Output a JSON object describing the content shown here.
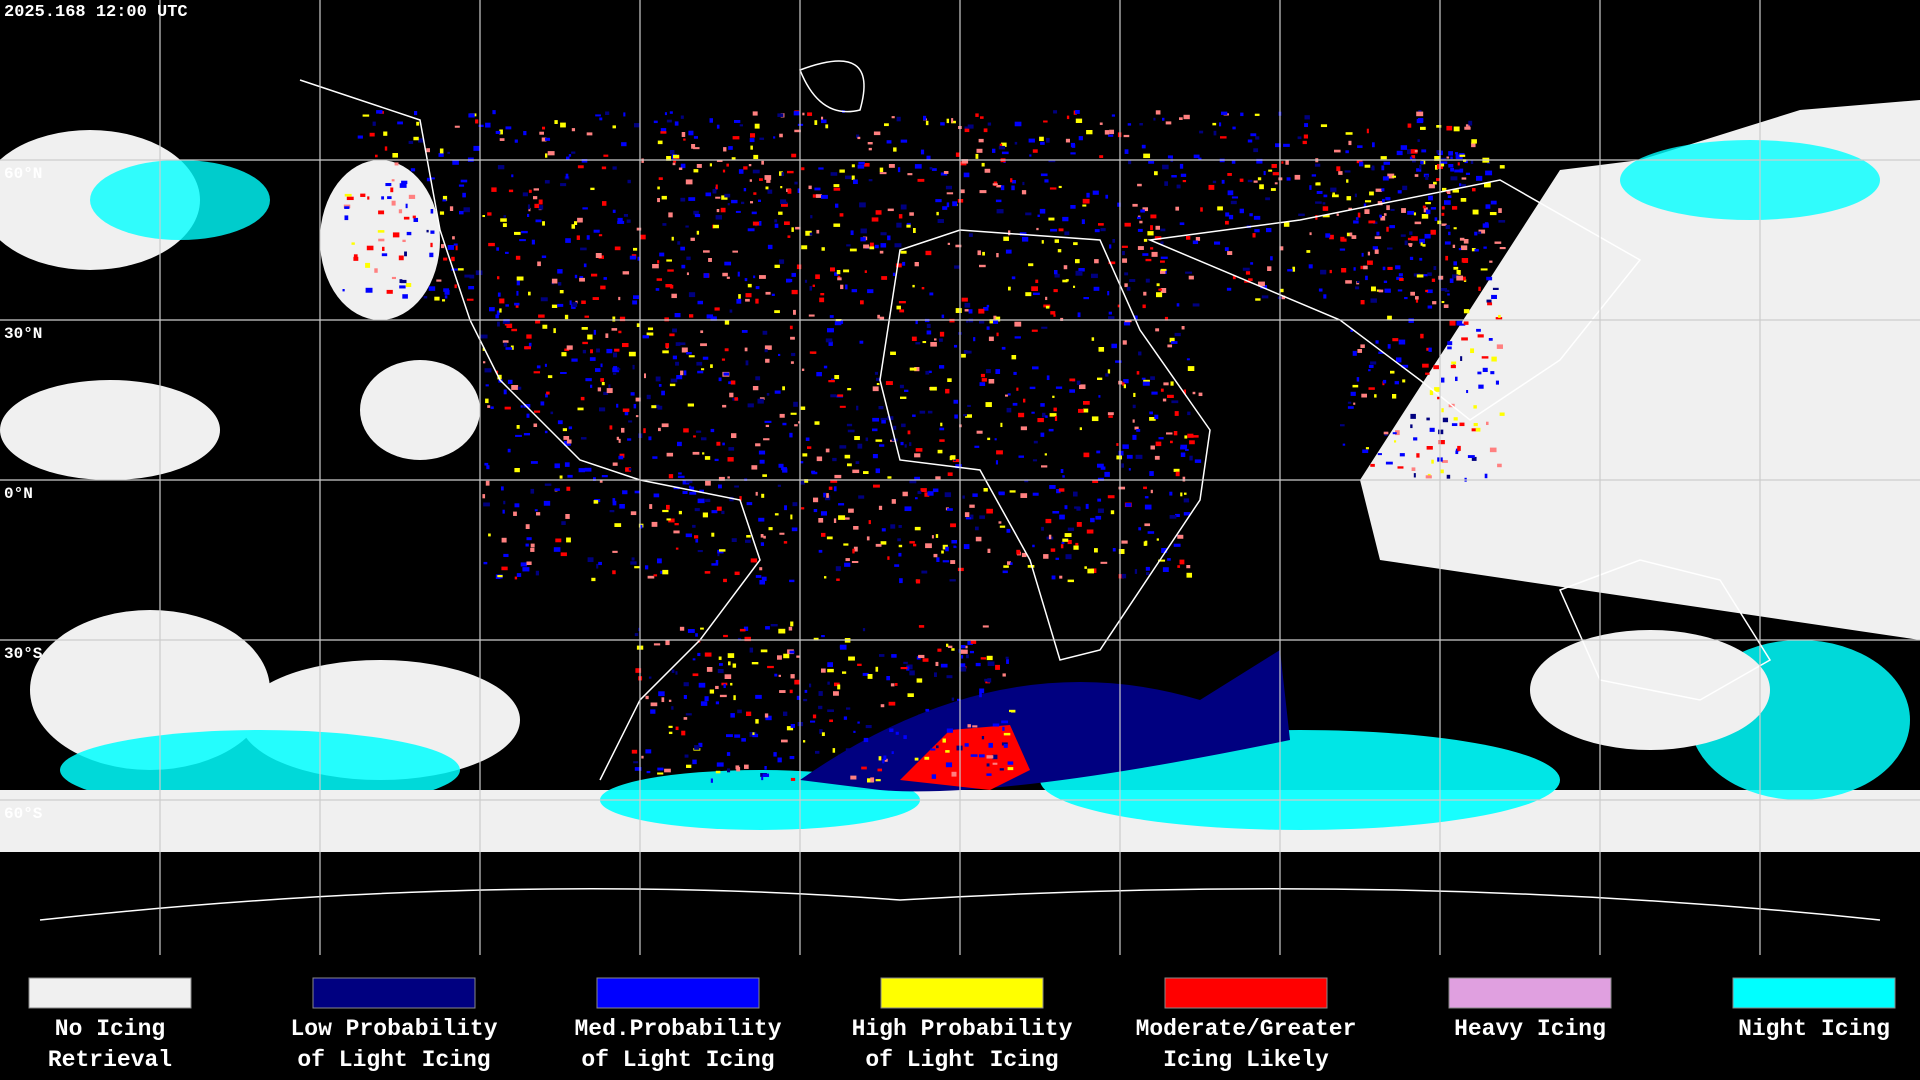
{
  "header": {
    "timestamp": "2025.168 12:00 UTC"
  },
  "map": {
    "lat_labels": [
      "60°N",
      "30°N",
      "0°N",
      "30°S",
      "60°S"
    ]
  },
  "legend": {
    "items": [
      {
        "lines": [
          "No Icing",
          "Retrieval"
        ],
        "color": "#f0f0f0"
      },
      {
        "lines": [
          "Low Probability",
          "of Light Icing"
        ],
        "color": "#000080"
      },
      {
        "lines": [
          "Med.Probability",
          "of Light Icing"
        ],
        "color": "#0000ff"
      },
      {
        "lines": [
          "High Probability",
          "of Light Icing"
        ],
        "color": "#ffff00"
      },
      {
        "lines": [
          "Moderate/Greater",
          "Icing Likely"
        ],
        "color": "#ff0000"
      },
      {
        "lines": [
          "Heavy Icing"
        ],
        "color": "#e0a0e0"
      },
      {
        "lines": [
          "Night Icing"
        ],
        "color": "#00ffff"
      }
    ]
  }
}
